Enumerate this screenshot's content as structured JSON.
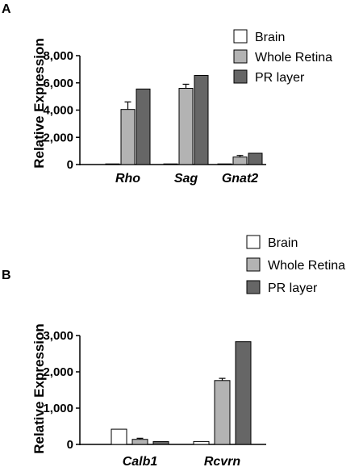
{
  "chart_data": [
    {
      "type": "bar",
      "panel_label": "A",
      "ylabel": "Relative Expression",
      "ylim": [
        0,
        8000
      ],
      "yticks": [
        "0",
        "2,000",
        "4,000",
        "6,000",
        "8,000"
      ],
      "categories": [
        "Rho",
        "Sag",
        "Gnat2"
      ],
      "legend_placement": "top-right",
      "series": [
        {
          "name": "Brain",
          "color": "#ffffff",
          "values": [
            20,
            20,
            20
          ],
          "errors": [
            0,
            0,
            0
          ]
        },
        {
          "name": "Whole Retina",
          "color": "#b3b3b3",
          "values": [
            4050,
            5600,
            550
          ],
          "errors": [
            550,
            300,
            120
          ]
        },
        {
          "name": "PR layer",
          "color": "#666666",
          "values": [
            5550,
            6550,
            830
          ],
          "errors": [
            0,
            0,
            0
          ]
        }
      ]
    },
    {
      "type": "bar",
      "panel_label": "B",
      "ylabel": "Relative Expression",
      "ylim": [
        0,
        3000
      ],
      "yticks": [
        "0",
        "1,000",
        "2,000",
        "3,000"
      ],
      "categories": [
        "Calb1",
        "Rcvrn"
      ],
      "legend_placement": "top-right",
      "series": [
        {
          "name": "Brain",
          "color": "#ffffff",
          "values": [
            420,
            80
          ],
          "errors": [
            0,
            0
          ]
        },
        {
          "name": "Whole Retina",
          "color": "#b3b3b3",
          "values": [
            140,
            1760
          ],
          "errors": [
            30,
            60
          ]
        },
        {
          "name": "PR layer",
          "color": "#666666",
          "values": [
            80,
            2830
          ],
          "errors": [
            0,
            0
          ]
        }
      ]
    }
  ]
}
